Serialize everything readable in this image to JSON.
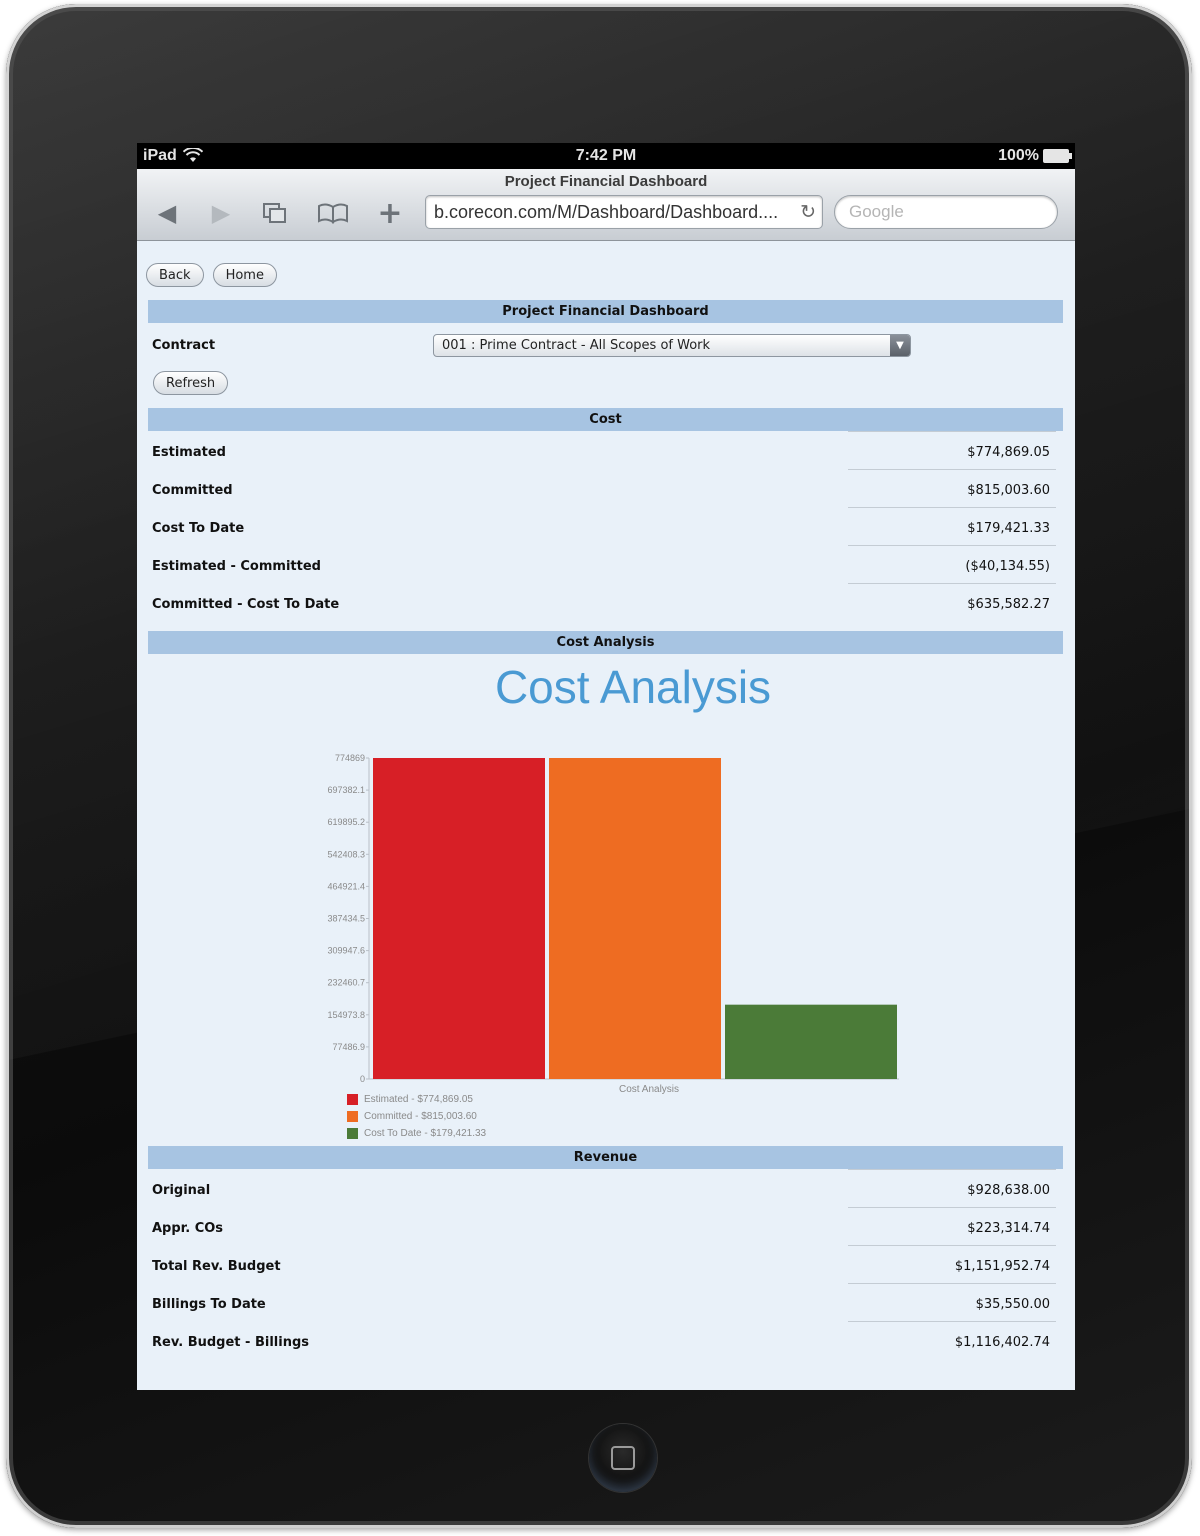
{
  "status_bar": {
    "device": "iPad",
    "time": "7:42 PM",
    "battery": "100%"
  },
  "browser": {
    "page_title": "Project Financial Dashboard",
    "url": "b.corecon.com/M/Dashboard/Dashboard....",
    "search_placeholder": "Google"
  },
  "nav": {
    "back_label": "Back",
    "home_label": "Home"
  },
  "dashboard": {
    "title": "Project Financial Dashboard",
    "contract_label": "Contract",
    "contract_value": "001 : Prime Contract - All Scopes of Work",
    "refresh_label": "Refresh"
  },
  "cost": {
    "header": "Cost",
    "rows": [
      {
        "label": "Estimated",
        "value": "$774,869.05"
      },
      {
        "label": "Committed",
        "value": "$815,003.60"
      },
      {
        "label": "Cost To Date",
        "value": "$179,421.33"
      },
      {
        "label": "Estimated - Committed",
        "value": "($40,134.55)"
      },
      {
        "label": "Committed - Cost To Date",
        "value": "$635,582.27"
      }
    ]
  },
  "cost_analysis": {
    "header": "Cost Analysis"
  },
  "chart_data": {
    "type": "bar",
    "title": "Cost Analysis",
    "categories": [
      "Cost Analysis"
    ],
    "xlabel": "Cost Analysis",
    "ylim": [
      0,
      774869
    ],
    "yticks": [
      "0",
      "77486.9",
      "154973.8",
      "232460.7",
      "309947.6",
      "387434.5",
      "464921.4",
      "542408.3",
      "619895.2",
      "697382.1",
      "774869"
    ],
    "series": [
      {
        "name": "Estimated - $774,869.05",
        "value": 774869.05,
        "color": "#d71f26"
      },
      {
        "name": "Committed - $815,003.60",
        "value": 815003.6,
        "color": "#ee6c22"
      },
      {
        "name": "Cost To Date - $179,421.33",
        "value": 179421.33,
        "color": "#4b7b38"
      }
    ],
    "legend_position": "bottom-left"
  },
  "revenue": {
    "header": "Revenue",
    "rows": [
      {
        "label": "Original",
        "value": "$928,638.00"
      },
      {
        "label": "Appr. COs",
        "value": "$223,314.74"
      },
      {
        "label": "Total Rev. Budget",
        "value": "$1,151,952.74"
      },
      {
        "label": "Billings To Date",
        "value": "$35,550.00"
      },
      {
        "label": "Rev. Budget - Billings",
        "value": "$1,116,402.74"
      }
    ]
  }
}
